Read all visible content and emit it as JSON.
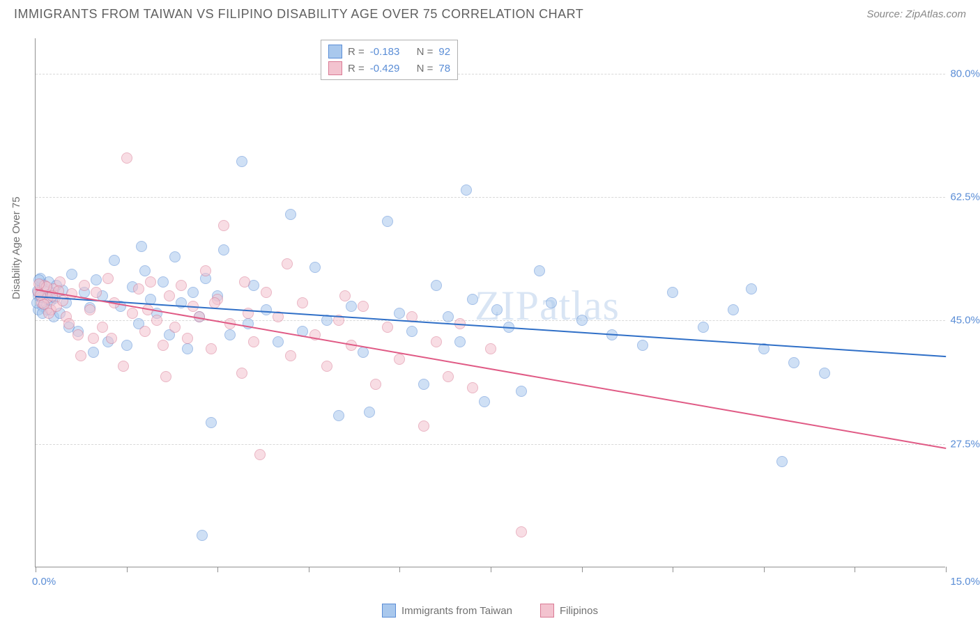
{
  "title": "IMMIGRANTS FROM TAIWAN VS FILIPINO DISABILITY AGE OVER 75 CORRELATION CHART",
  "source": "Source: ZipAtlas.com",
  "yaxis_title": "Disability Age Over 75",
  "watermark": "ZIPatlas",
  "chart": {
    "type": "scatter",
    "xlim": [
      0.0,
      15.0
    ],
    "ylim": [
      10.0,
      85.0
    ],
    "x_ticks": [
      0.0,
      1.5,
      3.0,
      4.5,
      6.0,
      7.5,
      9.0,
      10.5,
      12.0,
      13.5,
      15.0
    ],
    "x_lim_labels": {
      "left": "0.0%",
      "right": "15.0%"
    },
    "y_gridlines": [
      27.5,
      45.0,
      62.5,
      80.0
    ],
    "y_tick_labels": [
      "27.5%",
      "45.0%",
      "62.5%",
      "80.0%"
    ],
    "background_color": "#ffffff",
    "grid_color": "#d8d8d8",
    "axis_color": "#909090",
    "tick_label_color": "#5a8dd6",
    "marker_radius": 8,
    "marker_opacity": 0.55
  },
  "series": [
    {
      "name": "Immigrants from Taiwan",
      "color_fill": "#a9c8ed",
      "color_stroke": "#5a8dd6",
      "line_color": "#2f6fc7",
      "R": "-0.183",
      "N": "92",
      "regression": {
        "x1": 0.0,
        "y1": 48.5,
        "x2": 15.0,
        "y2": 40.0
      },
      "points": [
        [
          0.05,
          48.5
        ],
        [
          0.1,
          50.2
        ],
        [
          0.12,
          47.0
        ],
        [
          0.15,
          49.5
        ],
        [
          0.18,
          46.5
        ],
        [
          0.2,
          48.0
        ],
        [
          0.22,
          50.5
        ],
        [
          0.25,
          47.8
        ],
        [
          0.28,
          49.0
        ],
        [
          0.3,
          45.5
        ],
        [
          0.32,
          48.2
        ],
        [
          0.35,
          50.0
        ],
        [
          0.4,
          46.0
        ],
        [
          0.45,
          49.3
        ],
        [
          0.5,
          47.5
        ],
        [
          0.55,
          44.0
        ],
        [
          0.6,
          51.5
        ],
        [
          0.7,
          43.5
        ],
        [
          0.8,
          49.0
        ],
        [
          0.9,
          46.8
        ],
        [
          1.0,
          50.8
        ],
        [
          1.1,
          48.5
        ],
        [
          1.2,
          42.0
        ],
        [
          1.3,
          53.5
        ],
        [
          1.4,
          47.0
        ],
        [
          1.5,
          41.5
        ],
        [
          1.6,
          49.8
        ],
        [
          1.7,
          44.5
        ],
        [
          1.8,
          52.0
        ],
        [
          1.9,
          48.0
        ],
        [
          2.0,
          46.0
        ],
        [
          2.1,
          50.5
        ],
        [
          2.2,
          43.0
        ],
        [
          2.3,
          54.0
        ],
        [
          2.4,
          47.5
        ],
        [
          2.5,
          41.0
        ],
        [
          2.6,
          49.0
        ],
        [
          2.7,
          45.5
        ],
        [
          2.8,
          51.0
        ],
        [
          2.9,
          30.5
        ],
        [
          3.0,
          48.5
        ],
        [
          3.2,
          43.0
        ],
        [
          3.4,
          67.5
        ],
        [
          3.5,
          44.5
        ],
        [
          3.6,
          50.0
        ],
        [
          3.8,
          46.5
        ],
        [
          4.0,
          42.0
        ],
        [
          4.2,
          60.0
        ],
        [
          4.4,
          43.5
        ],
        [
          4.6,
          52.5
        ],
        [
          4.8,
          45.0
        ],
        [
          5.0,
          31.5
        ],
        [
          5.2,
          47.0
        ],
        [
          5.4,
          40.5
        ],
        [
          5.5,
          32.0
        ],
        [
          5.8,
          59.0
        ],
        [
          6.0,
          46.0
        ],
        [
          6.2,
          43.5
        ],
        [
          6.4,
          36.0
        ],
        [
          6.6,
          50.0
        ],
        [
          6.8,
          45.5
        ],
        [
          7.0,
          42.0
        ],
        [
          7.1,
          63.5
        ],
        [
          7.2,
          48.0
        ],
        [
          7.4,
          33.5
        ],
        [
          7.6,
          46.5
        ],
        [
          7.8,
          44.0
        ],
        [
          8.0,
          35.0
        ],
        [
          8.3,
          52.0
        ],
        [
          8.5,
          47.5
        ],
        [
          9.0,
          45.0
        ],
        [
          9.5,
          43.0
        ],
        [
          10.0,
          41.5
        ],
        [
          10.5,
          49.0
        ],
        [
          11.0,
          44.0
        ],
        [
          11.5,
          46.5
        ],
        [
          12.0,
          41.0
        ],
        [
          12.5,
          39.0
        ],
        [
          13.0,
          37.5
        ],
        [
          2.75,
          14.5
        ],
        [
          3.1,
          55.0
        ],
        [
          1.75,
          55.5
        ],
        [
          0.95,
          40.5
        ],
        [
          11.8,
          49.5
        ],
        [
          12.3,
          25.0
        ],
        [
          0.08,
          51.0
        ],
        [
          0.05,
          46.5
        ],
        [
          0.03,
          49.2
        ],
        [
          0.02,
          47.5
        ],
        [
          0.06,
          50.8
        ],
        [
          0.09,
          48.3
        ],
        [
          0.11,
          46.0
        ]
      ]
    },
    {
      "name": "Filipinos",
      "color_fill": "#f3c3cf",
      "color_stroke": "#d97a94",
      "line_color": "#e05a85",
      "R": "-0.429",
      "N": "78",
      "regression": {
        "x1": 0.0,
        "y1": 49.5,
        "x2": 15.0,
        "y2": 27.0
      },
      "points": [
        [
          0.05,
          49.0
        ],
        [
          0.1,
          47.5
        ],
        [
          0.15,
          50.0
        ],
        [
          0.2,
          48.2
        ],
        [
          0.25,
          46.5
        ],
        [
          0.3,
          49.5
        ],
        [
          0.35,
          47.0
        ],
        [
          0.4,
          50.5
        ],
        [
          0.5,
          45.5
        ],
        [
          0.6,
          48.8
        ],
        [
          0.7,
          43.0
        ],
        [
          0.8,
          50.0
        ],
        [
          0.9,
          46.5
        ],
        [
          1.0,
          49.0
        ],
        [
          1.1,
          44.0
        ],
        [
          1.2,
          51.0
        ],
        [
          1.3,
          47.5
        ],
        [
          1.5,
          68.0
        ],
        [
          1.6,
          46.0
        ],
        [
          1.7,
          49.5
        ],
        [
          1.8,
          43.5
        ],
        [
          1.9,
          50.5
        ],
        [
          2.0,
          45.0
        ],
        [
          2.1,
          41.5
        ],
        [
          2.2,
          48.5
        ],
        [
          2.3,
          44.0
        ],
        [
          2.4,
          50.0
        ],
        [
          2.5,
          42.5
        ],
        [
          2.6,
          47.0
        ],
        [
          2.7,
          45.5
        ],
        [
          2.8,
          52.0
        ],
        [
          2.9,
          41.0
        ],
        [
          3.0,
          48.0
        ],
        [
          3.1,
          58.5
        ],
        [
          3.2,
          44.5
        ],
        [
          3.4,
          37.5
        ],
        [
          3.5,
          46.0
        ],
        [
          3.6,
          42.0
        ],
        [
          3.8,
          49.0
        ],
        [
          4.0,
          45.5
        ],
        [
          4.2,
          40.0
        ],
        [
          4.4,
          47.5
        ],
        [
          4.6,
          43.0
        ],
        [
          4.8,
          38.5
        ],
        [
          5.0,
          45.0
        ],
        [
          5.2,
          41.5
        ],
        [
          5.4,
          47.0
        ],
        [
          5.6,
          36.0
        ],
        [
          5.8,
          44.0
        ],
        [
          6.0,
          39.5
        ],
        [
          6.2,
          45.5
        ],
        [
          6.4,
          30.0
        ],
        [
          6.6,
          42.0
        ],
        [
          6.8,
          37.0
        ],
        [
          7.0,
          44.5
        ],
        [
          7.2,
          35.5
        ],
        [
          7.5,
          41.0
        ],
        [
          8.0,
          15.0
        ],
        [
          3.7,
          26.0
        ],
        [
          2.15,
          37.0
        ],
        [
          1.45,
          38.5
        ],
        [
          0.95,
          42.5
        ],
        [
          0.75,
          40.0
        ],
        [
          0.55,
          44.5
        ],
        [
          0.45,
          47.8
        ],
        [
          0.38,
          49.2
        ],
        [
          0.28,
          48.5
        ],
        [
          0.22,
          46.0
        ],
        [
          0.18,
          49.8
        ],
        [
          0.14,
          47.3
        ],
        [
          0.08,
          48.6
        ],
        [
          0.06,
          50.2
        ],
        [
          4.15,
          53.0
        ],
        [
          3.45,
          50.5
        ],
        [
          2.95,
          47.5
        ],
        [
          1.25,
          42.5
        ],
        [
          1.85,
          46.5
        ],
        [
          5.1,
          48.5
        ]
      ]
    }
  ],
  "legend_stats": {
    "rows": [
      {
        "swatch_fill": "#a9c8ed",
        "swatch_stroke": "#5a8dd6",
        "R_label": "R =",
        "R_val": "-0.183",
        "N_label": "N =",
        "N_val": "92"
      },
      {
        "swatch_fill": "#f3c3cf",
        "swatch_stroke": "#d97a94",
        "R_label": "R =",
        "R_val": "-0.429",
        "N_label": "N =",
        "N_val": "78"
      }
    ]
  },
  "bottom_legend": [
    {
      "swatch_fill": "#a9c8ed",
      "swatch_stroke": "#5a8dd6",
      "label": "Immigrants from Taiwan"
    },
    {
      "swatch_fill": "#f3c3cf",
      "swatch_stroke": "#d97a94",
      "label": "Filipinos"
    }
  ]
}
